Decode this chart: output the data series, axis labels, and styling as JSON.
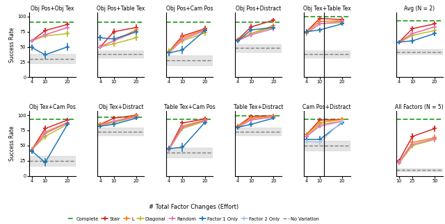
{
  "subplot_titles_row1": [
    "Obj Pos+Obj Tex",
    "Obj Pos+Table Tex",
    "Obj Pos+Cam Pos",
    "Obj Pos+Distract",
    "Obj Tex+Table Tex",
    "Avg (N = 2)"
  ],
  "subplot_titles_row2": [
    "Obj Tex+Cam Pos",
    "Obj Tex+Distract",
    "Table Tex+Cam Pos",
    "Table Tex+Distract",
    "Cam Pos+Distract",
    "All Factors (N = 5)"
  ],
  "x_ticks_main": [
    4,
    10,
    20
  ],
  "x_ticks_last": [
    10,
    25,
    50
  ],
  "xlabel": "# Total Factor Changes (Effort)",
  "ylabel": "Success Rate",
  "colors": {
    "Complete": "#2ca02c",
    "Stair": "#d62728",
    "L": "#ff7f0e",
    "Diagonal": "#bcbd22",
    "Random": "#e377c2",
    "Factor1Only": "#1f77b4",
    "Factor2Only": "#aec7e8",
    "NoVariation": "#7f7f7f"
  },
  "panels": {
    "ObjPos_ObjTex": {
      "complete": 91,
      "no_var": 30,
      "no_var_band": [
        23,
        38
      ],
      "stair": [
        60,
        77,
        87
      ],
      "stair_err": [
        3,
        5,
        4
      ],
      "L": [
        60,
        70,
        82
      ],
      "L_err": [
        3,
        4,
        4
      ],
      "diagonal": [
        60,
        68,
        72
      ],
      "diagonal_err": [
        3,
        4,
        5
      ],
      "random": [
        60,
        70,
        82
      ],
      "random_err": [
        3,
        4,
        4
      ],
      "f1only": [
        49,
        37,
        50
      ],
      "f1only_err": [
        5,
        7,
        6
      ],
      "f2only": null
    },
    "ObjPos_TableTex": {
      "complete": 91,
      "no_var": 38,
      "no_var_band": [
        32,
        44
      ],
      "stair": [
        50,
        75,
        82
      ],
      "stair_err": [
        4,
        5,
        5
      ],
      "L": [
        50,
        60,
        78
      ],
      "L_err": [
        4,
        5,
        5
      ],
      "diagonal": [
        50,
        55,
        65
      ],
      "diagonal_err": [
        4,
        5,
        5
      ],
      "random": [
        50,
        60,
        75
      ],
      "random_err": [
        4,
        5,
        5
      ],
      "f1only": [
        65,
        63,
        75
      ],
      "f1only_err": [
        5,
        6,
        5
      ],
      "f2only": null
    },
    "ObjPos_CamPos": {
      "complete": 91,
      "no_var": 28,
      "no_var_band": [
        20,
        36
      ],
      "stair": [
        43,
        68,
        80
      ],
      "stair_err": [
        4,
        5,
        5
      ],
      "L": [
        43,
        65,
        78
      ],
      "L_err": [
        4,
        5,
        5
      ],
      "diagonal": [
        43,
        60,
        73
      ],
      "diagonal_err": [
        4,
        5,
        5
      ],
      "random": [
        40,
        62,
        77
      ],
      "random_err": [
        4,
        5,
        5
      ],
      "f1only": [
        40,
        45,
        77
      ],
      "f1only_err": [
        5,
        7,
        5
      ],
      "f2only": null
    },
    "ObjPos_Distract": {
      "complete": 91,
      "no_var": 48,
      "no_var_band": [
        42,
        54
      ],
      "stair": [
        62,
        83,
        94
      ],
      "stair_err": [
        4,
        5,
        3
      ],
      "L": [
        62,
        72,
        85
      ],
      "L_err": [
        4,
        5,
        4
      ],
      "diagonal": [
        60,
        72,
        82
      ],
      "diagonal_err": [
        4,
        5,
        4
      ],
      "random": [
        60,
        70,
        80
      ],
      "random_err": [
        4,
        5,
        4
      ],
      "f1only": [
        60,
        78,
        82
      ],
      "f1only_err": [
        4,
        5,
        4
      ],
      "f2only": null
    },
    "ObjTex_TableTex": {
      "complete": 100,
      "no_var": 38,
      "no_var_band": [
        32,
        44
      ],
      "stair": [
        75,
        97,
        95
      ],
      "stair_err": [
        4,
        2,
        2
      ],
      "L": [
        75,
        92,
        93
      ],
      "L_err": [
        4,
        3,
        2
      ],
      "diagonal": [
        72,
        88,
        90
      ],
      "diagonal_err": [
        4,
        3,
        3
      ],
      "random": [
        73,
        88,
        92
      ],
      "random_err": [
        4,
        3,
        3
      ],
      "f1only": [
        75,
        78,
        88
      ],
      "f1only_err": [
        4,
        4,
        3
      ],
      "f2only": null
    },
    "Avg_N2": {
      "complete": 93,
      "no_var": 42,
      "no_var_band": [
        38,
        46
      ],
      "stair": [
        58,
        80,
        88
      ],
      "stair_err": [
        3,
        4,
        3
      ],
      "L": [
        58,
        72,
        83
      ],
      "L_err": [
        3,
        4,
        3
      ],
      "diagonal": [
        57,
        69,
        77
      ],
      "diagonal_err": [
        3,
        4,
        3
      ],
      "random": [
        57,
        72,
        83
      ],
      "random_err": [
        3,
        4,
        3
      ],
      "f1only": [
        58,
        60,
        72
      ],
      "f1only_err": [
        3,
        5,
        4
      ],
      "f2only": null,
      "x_ticks": [
        4,
        10,
        20
      ]
    },
    "ObjTex_CamPos": {
      "complete": 93,
      "no_var": 25,
      "no_var_band": [
        17,
        33
      ],
      "stair": [
        43,
        78,
        92
      ],
      "stair_err": [
        4,
        5,
        3
      ],
      "L": [
        43,
        72,
        88
      ],
      "L_err": [
        4,
        5,
        3
      ],
      "diagonal": [
        43,
        65,
        85
      ],
      "diagonal_err": [
        4,
        5,
        3
      ],
      "random": [
        42,
        70,
        87
      ],
      "random_err": [
        4,
        5,
        3
      ],
      "f1only": [
        41,
        22,
        85
      ],
      "f1only_err": [
        5,
        7,
        3
      ],
      "f2only": null
    },
    "ObjTex_Distract": {
      "complete": 97,
      "no_var": 73,
      "no_var_band": [
        67,
        79
      ],
      "stair": [
        85,
        95,
        100
      ],
      "stair_err": [
        3,
        2,
        0
      ],
      "L": [
        85,
        90,
        99
      ],
      "L_err": [
        3,
        3,
        1
      ],
      "diagonal": [
        83,
        88,
        97
      ],
      "diagonal_err": [
        3,
        3,
        2
      ],
      "random": [
        82,
        90,
        97
      ],
      "random_err": [
        3,
        3,
        2
      ],
      "f1only": [
        82,
        85,
        95
      ],
      "f1only_err": [
        3,
        4,
        2
      ],
      "f2only": null
    },
    "TableTex_CamPos": {
      "complete": 93,
      "no_var": 38,
      "no_var_band": [
        30,
        46
      ],
      "stair": [
        45,
        87,
        94
      ],
      "stair_err": [
        4,
        4,
        3
      ],
      "L": [
        45,
        82,
        92
      ],
      "L_err": [
        4,
        4,
        3
      ],
      "diagonal": [
        45,
        78,
        90
      ],
      "diagonal_err": [
        4,
        4,
        3
      ],
      "random": [
        43,
        80,
        91
      ],
      "random_err": [
        4,
        4,
        3
      ],
      "f1only": [
        45,
        47,
        88
      ],
      "f1only_err": [
        5,
        7,
        3
      ],
      "f2only": null
    },
    "TableTex_Distract": {
      "complete": 99,
      "no_var": 73,
      "no_var_band": [
        67,
        79
      ],
      "stair": [
        82,
        98,
        99
      ],
      "stair_err": [
        3,
        1,
        1
      ],
      "L": [
        82,
        95,
        99
      ],
      "L_err": [
        3,
        2,
        1
      ],
      "diagonal": [
        80,
        93,
        97
      ],
      "diagonal_err": [
        3,
        3,
        2
      ],
      "random": [
        80,
        92,
        97
      ],
      "random_err": [
        3,
        3,
        2
      ],
      "f1only": [
        80,
        85,
        95
      ],
      "f1only_err": [
        3,
        4,
        2
      ],
      "f2only": null
    },
    "CamPos_Distract": {
      "complete": 93,
      "no_var": 50,
      "no_var_band": [
        42,
        58
      ],
      "stair": [
        68,
        92,
        93
      ],
      "stair_err": [
        4,
        3,
        3
      ],
      "L": [
        68,
        88,
        93
      ],
      "L_err": [
        4,
        3,
        3
      ],
      "diagonal": [
        65,
        85,
        90
      ],
      "diagonal_err": [
        4,
        3,
        3
      ],
      "random": [
        65,
        82,
        90
      ],
      "random_err": [
        4,
        4,
        3
      ],
      "f1only": [
        60,
        60,
        88
      ],
      "f1only_err": [
        4,
        6,
        3
      ],
      "f2only": [
        57,
        55,
        90
      ],
      "f2only_err": [
        4,
        6,
        3
      ]
    },
    "All_N5": {
      "complete": 93,
      "no_var": 10,
      "no_var_band": [
        8,
        12
      ],
      "stair": [
        25,
        65,
        78
      ],
      "stair_err": [
        3,
        5,
        5
      ],
      "L": [
        22,
        55,
        63
      ],
      "L_err": [
        3,
        5,
        5
      ],
      "diagonal": [
        21,
        50,
        60
      ],
      "diagonal_err": [
        3,
        5,
        5
      ],
      "random": [
        22,
        52,
        61
      ],
      "random_err": [
        3,
        5,
        5
      ],
      "f1only": null,
      "f2only": null,
      "x_ticks": [
        10,
        25,
        50
      ]
    }
  }
}
